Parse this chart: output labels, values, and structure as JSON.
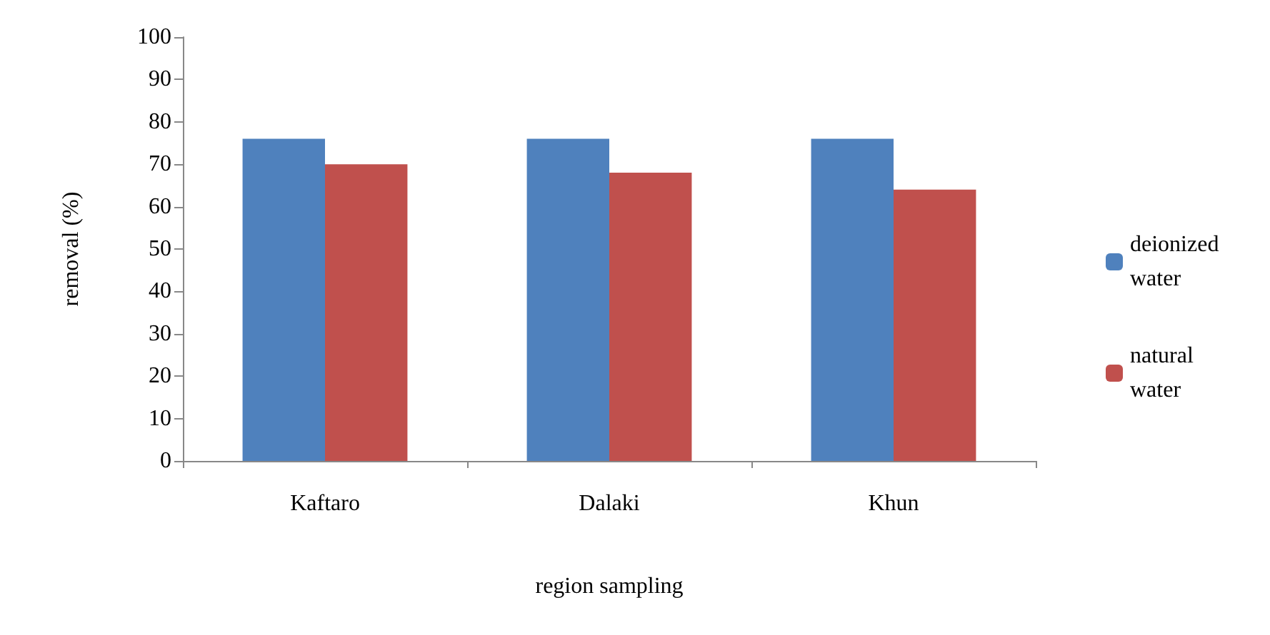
{
  "chart_data": {
    "type": "bar",
    "xlabel": "region sampling",
    "ylabel": "removal (%)",
    "categories": [
      "Kaftaro",
      "Dalaki",
      "Khun"
    ],
    "series": [
      {
        "name": "deionized water",
        "color": "#4f81bd",
        "values": [
          76,
          76,
          76
        ]
      },
      {
        "name": "natural water",
        "color": "#c0504d",
        "values": [
          70,
          68,
          64
        ]
      }
    ],
    "ylim": [
      0,
      100
    ],
    "yticks": [
      0,
      10,
      20,
      30,
      40,
      50,
      60,
      70,
      80,
      90,
      100
    ],
    "grid": false,
    "legend": "right"
  }
}
